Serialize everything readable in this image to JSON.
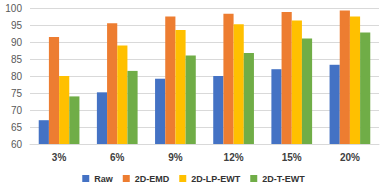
{
  "chart_data": {
    "type": "bar",
    "categories": [
      "3%",
      "6%",
      "9%",
      "12%",
      "15%",
      "20%"
    ],
    "series": [
      {
        "name": "Raw",
        "color": "#4472c4",
        "values": [
          67,
          75.2,
          79.2,
          80,
          82,
          83.3
        ]
      },
      {
        "name": "2D-EMD",
        "color": "#ed7d31",
        "values": [
          91.5,
          95.5,
          97.5,
          98.3,
          98.8,
          99.3
        ]
      },
      {
        "name": "2D-LP-EWT",
        "color": "#ffc000",
        "values": [
          80,
          89,
          93.5,
          95.2,
          96.3,
          97.5
        ]
      },
      {
        "name": "2D-T-EWT",
        "color": "#70ad47",
        "values": [
          74,
          81.5,
          86,
          86.8,
          91,
          92.8
        ]
      }
    ],
    "ylim": [
      60,
      100
    ],
    "yticks": [
      60,
      65,
      70,
      75,
      80,
      85,
      90,
      95,
      100
    ],
    "grid": true,
    "legend": "bottom"
  }
}
